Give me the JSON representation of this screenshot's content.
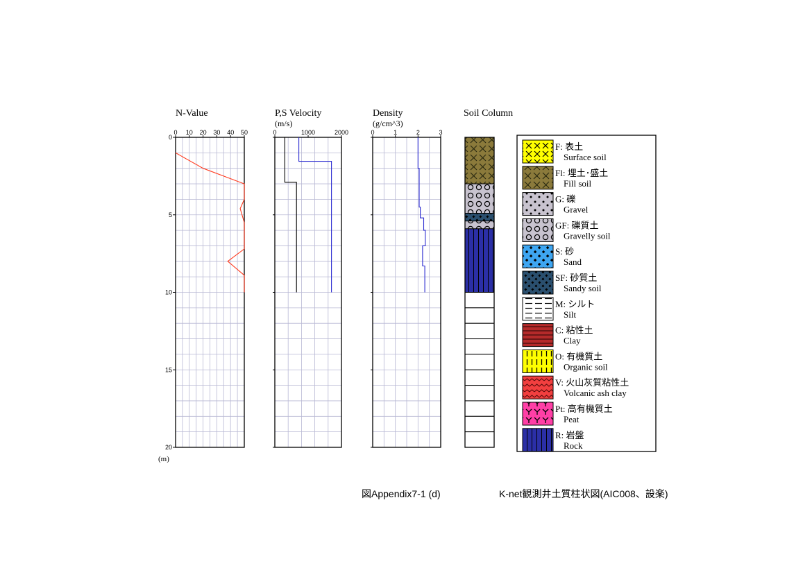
{
  "chart_data": [
    {
      "type": "line",
      "title": "N-Value",
      "xlim": [
        0,
        50
      ],
      "xticks": [
        "0",
        "10",
        "20",
        "30",
        "40",
        "50"
      ],
      "ylim": [
        0,
        20
      ],
      "yticks": [
        "0",
        "5",
        "10",
        "15",
        "20"
      ],
      "ylabel": "(m)",
      "series": [
        {
          "x": [
            0,
            2,
            4,
            6,
            8,
            10,
            12,
            14,
            16,
            18,
            20,
            50,
            50,
            47,
            50,
            50,
            50,
            50,
            38,
            50,
            50
          ],
          "y": [
            1,
            1.1,
            1.2,
            1.3,
            1.4,
            1.5,
            1.6,
            1.7,
            1.8,
            1.9,
            2,
            3,
            4,
            4.6,
            5.5,
            6,
            7,
            7.2,
            8,
            8.9,
            10
          ]
        }
      ]
    },
    {
      "type": "line",
      "title": "P,S Velocity",
      "xlabel": "(m/s)",
      "xlim": [
        0,
        2000
      ],
      "xticks": [
        "0",
        "1000",
        "2000"
      ],
      "ylim": [
        0,
        20
      ],
      "series": [
        {
          "x": [
            720,
            720,
            1700,
            1700
          ],
          "y": [
            0,
            1.55,
            1.55,
            10
          ]
        },
        {
          "x": [
            300,
            300,
            650,
            650
          ],
          "y": [
            0,
            2.9,
            2.9,
            10
          ]
        }
      ]
    },
    {
      "type": "line",
      "title": "Density",
      "xlabel": "(g/cm^3)",
      "xlim": [
        0,
        3
      ],
      "xticks": [
        "0",
        "1",
        "2",
        "3"
      ],
      "ylim": [
        0,
        20
      ],
      "series": [
        {
          "x": [
            2.0,
            2.0,
            2.05,
            2.05,
            2.05,
            2.1,
            2.1,
            2.25,
            2.25,
            2.32,
            2.32,
            2.2,
            2.2,
            2.3,
            2.3
          ],
          "y": [
            0,
            2.0,
            2.0,
            3.0,
            4.5,
            4.5,
            5.2,
            5.2,
            6.0,
            6.0,
            7.0,
            7.0,
            8.3,
            8.3,
            10
          ]
        }
      ]
    }
  ],
  "soil_column": {
    "title": "Soil Column",
    "layers": [
      {
        "from": 0,
        "to": 3,
        "type": "Fl"
      },
      {
        "from": 3,
        "to": 4.9,
        "type": "GF"
      },
      {
        "from": 4.9,
        "to": 5.4,
        "type": "SF"
      },
      {
        "from": 5.4,
        "to": 5.9,
        "type": "GF"
      },
      {
        "from": 5.9,
        "to": 10,
        "type": "R"
      }
    ],
    "empty_to": 20
  },
  "legend": [
    {
      "code": "F",
      "label_jp": "F: 表土",
      "label_en": "Surface soil",
      "color": "#ffff00"
    },
    {
      "code": "Fl",
      "label_jp": "Fl: 埋土･盛土",
      "label_en": "Fill soil",
      "color": "#8b7a3b"
    },
    {
      "code": "G",
      "label_jp": "G: 礫",
      "label_en": "Gravel",
      "color": "#c8c3cf"
    },
    {
      "code": "GF",
      "label_jp": "GF: 礫質土",
      "label_en": "Gravelly soil",
      "color": "#c8c3cf"
    },
    {
      "code": "S",
      "label_jp": "S: 砂",
      "label_en": "Sand",
      "color": "#3ea6f2"
    },
    {
      "code": "SF",
      "label_jp": "SF: 砂質土",
      "label_en": "Sandy soil",
      "color": "#2a4f6e"
    },
    {
      "code": "M",
      "label_jp": "M: シルト",
      "label_en": "Silt",
      "color": "#ffffff"
    },
    {
      "code": "C",
      "label_jp": "C: 粘性土",
      "label_en": "Clay",
      "color": "#b52a2a"
    },
    {
      "code": "O",
      "label_jp": "O: 有機質土",
      "label_en": "Organic soil",
      "color": "#ffff00"
    },
    {
      "code": "V",
      "label_jp": "V: 火山灰質粘性土",
      "label_en": "Volcanic ash clay",
      "color": "#f23f3f"
    },
    {
      "code": "Pt",
      "label_jp": "Pt: 高有機質土",
      "label_en": "Peat",
      "color": "#ff3fa6"
    },
    {
      "code": "R",
      "label_jp": "R: 岩盤",
      "label_en": "Rock",
      "color": "#2b2fa6"
    }
  ],
  "caption": {
    "figure_no": "図Appendix7-1 (d)",
    "description": "K-net観測井土質柱状図(AIC008、設楽)"
  },
  "colors": {
    "n_value_line": "#ff3b1f",
    "p_velocity_line": "#2a2ad0",
    "s_velocity_line": "#000000",
    "density_line": "#2a2ad0",
    "grid": "#b8b8d4"
  }
}
